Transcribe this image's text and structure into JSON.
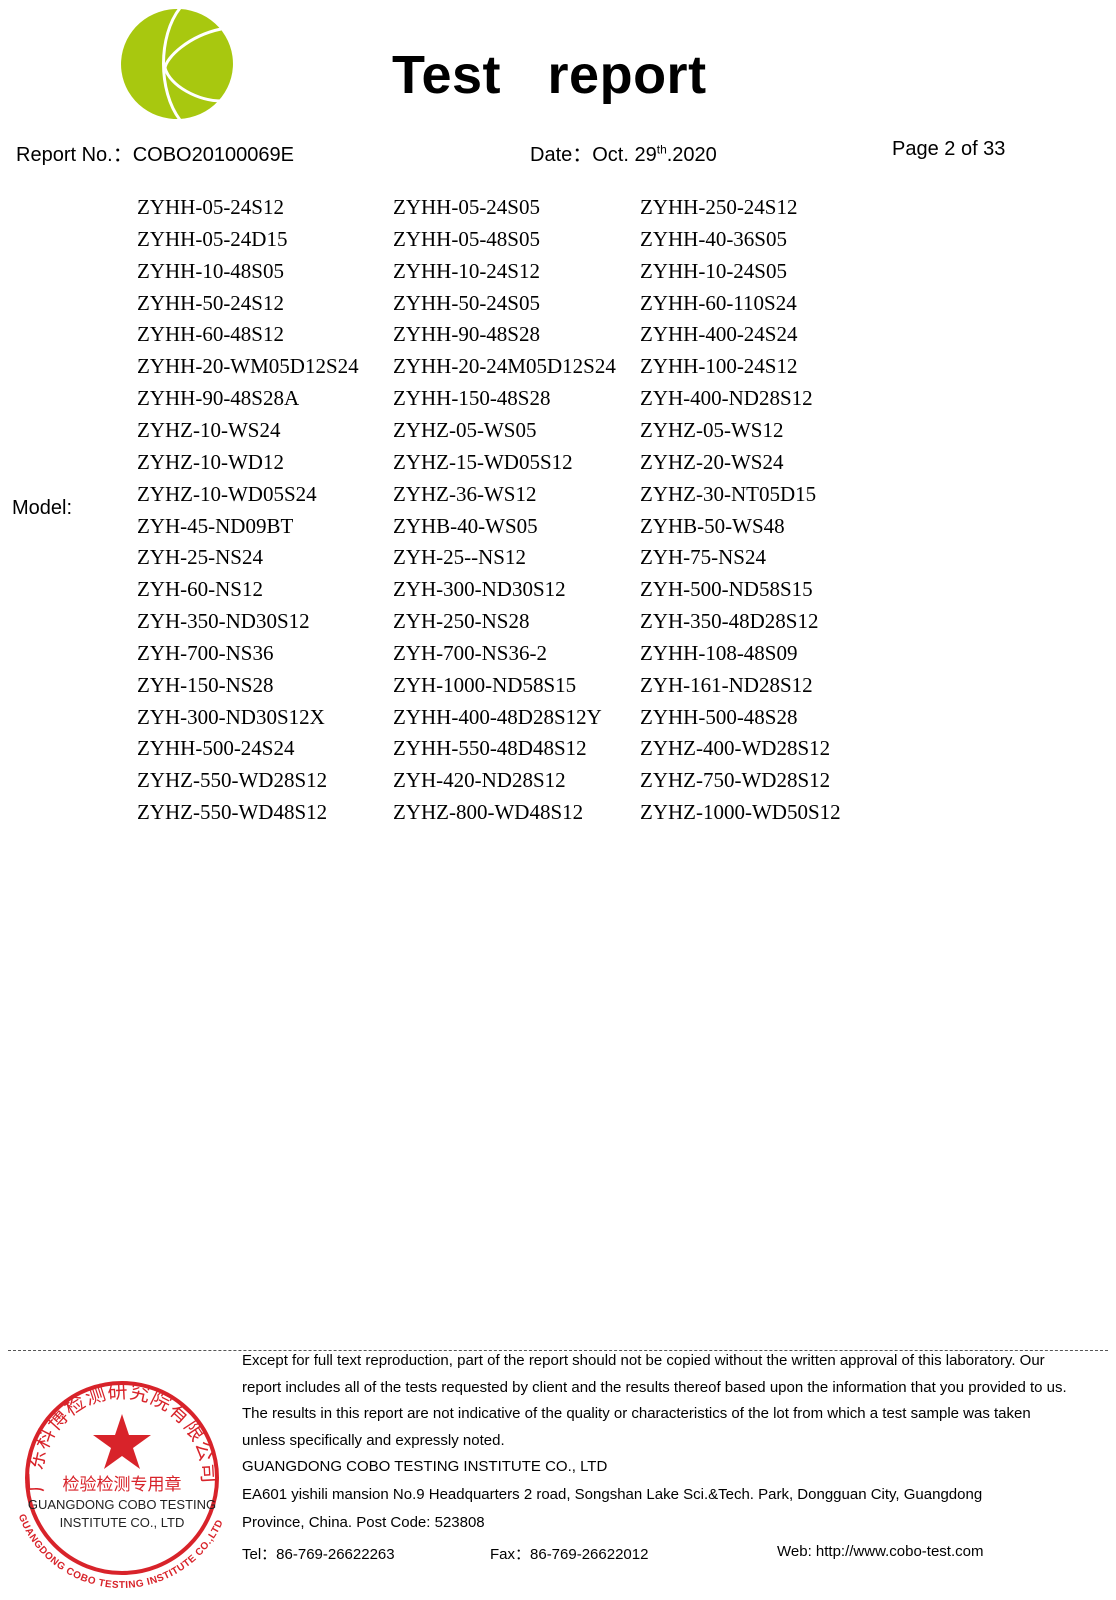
{
  "header": {
    "logo_name": "COBO logo",
    "title": "Test   report",
    "report_no_label": "Report No.：",
    "report_no": "COBO20100069E",
    "date_label": "Date：",
    "date_prefix": "Oct. 29",
    "date_sup": "th",
    "date_suffix": ".2020",
    "page": "Page 2 of 33"
  },
  "model": {
    "label": "Model:",
    "rows": [
      [
        "ZYHH-05-24S12",
        "ZYHH-05-24S05",
        "ZYHH-250-24S12"
      ],
      [
        "ZYHH-05-24D15",
        "ZYHH-05-48S05",
        "ZYHH-40-36S05"
      ],
      [
        "ZYHH-10-48S05",
        "ZYHH-10-24S12",
        "ZYHH-10-24S05"
      ],
      [
        "ZYHH-50-24S12",
        "ZYHH-50-24S05",
        "ZYHH-60-110S24"
      ],
      [
        "ZYHH-60-48S12",
        "ZYHH-90-48S28",
        "ZYHH-400-24S24"
      ],
      [
        "ZYHH-20-WM05D12S24",
        "ZYHH-20-24M05D12S24",
        "ZYHH-100-24S12"
      ],
      [
        "ZYHH-90-48S28A",
        "ZYHH-150-48S28",
        "ZYH-400-ND28S12"
      ],
      [
        "ZYHZ-10-WS24",
        "ZYHZ-05-WS05",
        "ZYHZ-05-WS12"
      ],
      [
        "ZYHZ-10-WD12",
        "ZYHZ-15-WD05S12",
        "ZYHZ-20-WS24"
      ],
      [
        "ZYHZ-10-WD05S24",
        "ZYHZ-36-WS12",
        "ZYHZ-30-NT05D15"
      ],
      [
        "ZYH-45-ND09BT",
        "ZYHB-40-WS05",
        "ZYHB-50-WS48"
      ],
      [
        "ZYH-25-NS24",
        "ZYH-25--NS12",
        "ZYH-75-NS24"
      ],
      [
        "ZYH-60-NS12",
        "ZYH-300-ND30S12",
        "ZYH-500-ND58S15"
      ],
      [
        "ZYH-350-ND30S12",
        "ZYH-250-NS28",
        "ZYH-350-48D28S12"
      ],
      [
        "ZYH-700-NS36",
        "ZYH-700-NS36-2",
        "ZYHH-108-48S09"
      ],
      [
        "ZYH-150-NS28",
        "ZYH-1000-ND58S15",
        "ZYH-161-ND28S12"
      ],
      [
        "ZYH-300-ND30S12X",
        "ZYHH-400-48D28S12Y",
        "ZYHH-500-48S28"
      ],
      [
        "ZYHH-500-24S24",
        "ZYHH-550-48D48S12",
        "ZYHZ-400-WD28S12"
      ],
      [
        "ZYHZ-550-WD28S12",
        "ZYH-420-ND28S12",
        "ZYHZ-750-WD28S12"
      ],
      [
        "ZYHZ-550-WD48S12",
        "ZYHZ-800-WD48S12",
        "ZYHZ-1000-WD50S12"
      ]
    ]
  },
  "footer": {
    "disclaimer": [
      "Except for full text reproduction, part of the report should not be copied without the written approval of this laboratory. Our",
      "report includes all of the tests requested by client and the results thereof based upon the information that you provided to us.",
      "The results in this report are not indicative of the quality or characteristics of the lot from which a test sample was taken",
      "unless specifically and expressly noted."
    ],
    "company": "GUANGDONG COBO TESTING INSTITUTE CO., LTD",
    "address_1": "EA601 yishili mansion No.9 Headquarters 2 road, Songshan Lake Sci.&Tech. Park, Dongguan City, Guangdong",
    "address_2": "Province, China. Post Code: 523808",
    "tel": "Tel：86-769-26622263",
    "fax": "Fax：86-769-26622012",
    "web": "Web: http://www.cobo-test.com",
    "stamp": {
      "ring_text_cn": "广东科博检测研究院有限公司",
      "center_text_cn": "检验检测专用章",
      "ring_text_en": "GUANGDONG COBO TESTING INSTITUTE CO.,LTD",
      "overlay_line_1": "GUANGDONG COBO TESTING",
      "overlay_line_2": "INSTITUTE CO., LTD",
      "color": "#d8232a"
    },
    "logo_color": "#a8c80f"
  }
}
